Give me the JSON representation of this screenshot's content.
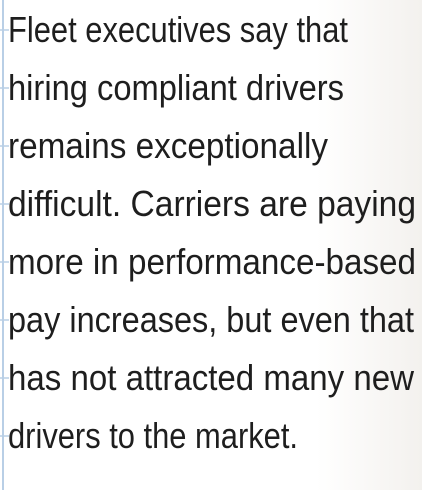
{
  "paragraph": {
    "lines": [
      "Fleet executives say that",
      "hiring compliant drivers",
      "remains exceptionally",
      "difficult. Carriers are paying",
      "more in performance-based",
      "pay increases, but even that",
      "has not attracted many new",
      "drivers to the market."
    ]
  }
}
